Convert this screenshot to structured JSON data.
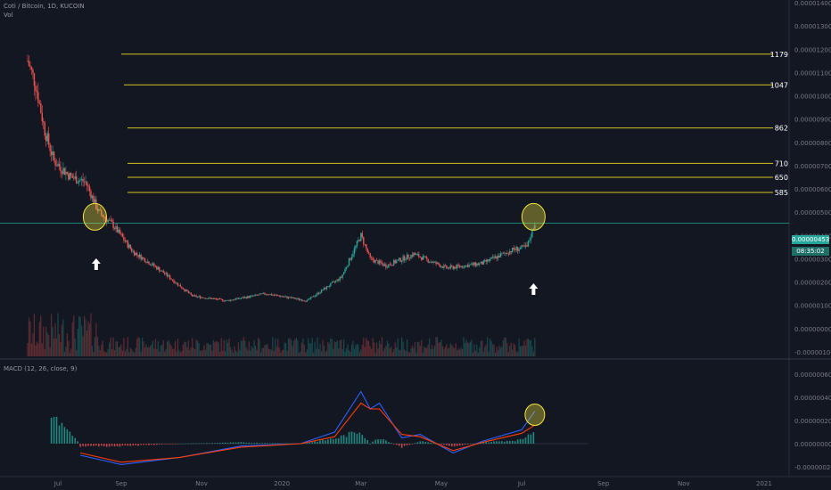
{
  "header": {
    "title": "Coti / Bitcoin, 1D, KUCOIN",
    "vol_label": "Vol",
    "macd_label": "MACD (12, 26, close, 9)"
  },
  "last_price": "0.00000453",
  "countdown": "08:35:02",
  "colors": {
    "background": "#131722",
    "up": "#26a69a",
    "down": "#ef5350",
    "level_line": "#d4c21f",
    "current_line": "#26a69a",
    "macd_line": "#2962ff",
    "signal_line": "#ff3d00",
    "highlight": "#f2e33c"
  },
  "chart_data": [
    {
      "type": "candlestick",
      "title": "Coti / Bitcoin, 1D, KUCOIN",
      "x_axis_ticks": [
        "Jul",
        "Sep",
        "Nov",
        "2020",
        "Mar",
        "May",
        "Jul",
        "Sep",
        "Nov",
        "2021"
      ],
      "y_axis_ticks": [
        "0.00001400",
        "0.00001300",
        "0.00001200",
        "0.00001100",
        "0.00001000",
        "0.00000900",
        "0.00000800",
        "0.00000700",
        "0.00000600",
        "0.00000500",
        "0.00000400",
        "0.00000300",
        "0.00000200",
        "0.00000100",
        "0.00000000",
        "-0.00000100"
      ],
      "ylim": [
        -1e-06,
        1.4e-05
      ],
      "current_price": 4.53e-06,
      "horizontal_levels": [
        {
          "label": "1179",
          "value": 1.179e-05
        },
        {
          "label": "1047",
          "value": 1.047e-05
        },
        {
          "label": "862",
          "value": 8.62e-06
        },
        {
          "label": "710",
          "value": 7.1e-06
        },
        {
          "label": "650",
          "value": 6.5e-06
        },
        {
          "label": "585",
          "value": 5.85e-06
        }
      ],
      "approx_close_path": [
        {
          "date": "2019-06-22",
          "close": 1.15e-05
        },
        {
          "date": "2019-06-28",
          "close": 1.05e-05
        },
        {
          "date": "2019-07-05",
          "close": 8.5e-06
        },
        {
          "date": "2019-07-12",
          "close": 7.2e-06
        },
        {
          "date": "2019-07-25",
          "close": 6.5e-06
        },
        {
          "date": "2019-08-05",
          "close": 6.3e-06
        },
        {
          "date": "2019-08-15",
          "close": 5e-06
        },
        {
          "date": "2019-08-25",
          "close": 4.5e-06
        },
        {
          "date": "2019-09-10",
          "close": 3.3e-06
        },
        {
          "date": "2019-10-01",
          "close": 2.5e-06
        },
        {
          "date": "2019-10-25",
          "close": 1.4e-06
        },
        {
          "date": "2019-11-20",
          "close": 1.2e-06
        },
        {
          "date": "2019-12-20",
          "close": 1.5e-06
        },
        {
          "date": "2020-01-20",
          "close": 1.2e-06
        },
        {
          "date": "2020-02-15",
          "close": 2.2e-06
        },
        {
          "date": "2020-03-01",
          "close": 4e-06
        },
        {
          "date": "2020-03-08",
          "close": 3e-06
        },
        {
          "date": "2020-03-20",
          "close": 2.7e-06
        },
        {
          "date": "2020-04-10",
          "close": 3.2e-06
        },
        {
          "date": "2020-05-05",
          "close": 2.6e-06
        },
        {
          "date": "2020-06-01",
          "close": 2.8e-06
        },
        {
          "date": "2020-06-25",
          "close": 3.4e-06
        },
        {
          "date": "2020-07-05",
          "close": 3.5e-06
        },
        {
          "date": "2020-07-11",
          "close": 4.53e-06
        }
      ],
      "annotations": [
        {
          "type": "circle",
          "date": "2019-08-12",
          "value": 4.8e-06
        },
        {
          "type": "up-arrow",
          "date": "2019-08-13"
        },
        {
          "type": "circle",
          "date": "2020-07-10",
          "value": 4.8e-06
        },
        {
          "type": "up-arrow",
          "date": "2020-07-10"
        }
      ]
    },
    {
      "type": "line",
      "title": "MACD (12, 26, close, 9)",
      "y_axis_ticks": [
        "0.00000060",
        "0.00000040",
        "0.00000020",
        "0.00000000",
        "-0.00000020"
      ],
      "ylim": [
        -2e-07,
        6e-07
      ],
      "series": [
        {
          "name": "MACD",
          "points": [
            {
              "date": "2019-08-01",
              "value": -1e-07
            },
            {
              "date": "2019-09-01",
              "value": -1.8e-07
            },
            {
              "date": "2019-10-15",
              "value": -1.2e-07
            },
            {
              "date": "2019-12-01",
              "value": -2e-08
            },
            {
              "date": "2020-01-15",
              "value": 0.0
            },
            {
              "date": "2020-02-10",
              "value": 1e-07
            },
            {
              "date": "2020-03-01",
              "value": 4.5e-07
            },
            {
              "date": "2020-03-08",
              "value": 3e-07
            },
            {
              "date": "2020-03-15",
              "value": 3.5e-07
            },
            {
              "date": "2020-04-01",
              "value": 5e-08
            },
            {
              "date": "2020-04-15",
              "value": 8e-08
            },
            {
              "date": "2020-05-10",
              "value": -8e-08
            },
            {
              "date": "2020-06-01",
              "value": 2e-08
            },
            {
              "date": "2020-07-01",
              "value": 1.2e-07
            },
            {
              "date": "2020-07-11",
              "value": 2.8e-07
            }
          ]
        },
        {
          "name": "Signal",
          "points": [
            {
              "date": "2019-08-01",
              "value": -8e-08
            },
            {
              "date": "2019-09-01",
              "value": -1.6e-07
            },
            {
              "date": "2019-10-15",
              "value": -1.2e-07
            },
            {
              "date": "2019-12-01",
              "value": -3e-08
            },
            {
              "date": "2020-01-15",
              "value": 0.0
            },
            {
              "date": "2020-02-10",
              "value": 6e-08
            },
            {
              "date": "2020-03-01",
              "value": 3.5e-07
            },
            {
              "date": "2020-03-08",
              "value": 3e-07
            },
            {
              "date": "2020-03-15",
              "value": 3e-07
            },
            {
              "date": "2020-04-01",
              "value": 8e-08
            },
            {
              "date": "2020-04-15",
              "value": 6e-08
            },
            {
              "date": "2020-05-10",
              "value": -6e-08
            },
            {
              "date": "2020-06-01",
              "value": 1e-08
            },
            {
              "date": "2020-07-01",
              "value": 9e-08
            },
            {
              "date": "2020-07-11",
              "value": 1.6e-07
            }
          ]
        }
      ]
    }
  ]
}
